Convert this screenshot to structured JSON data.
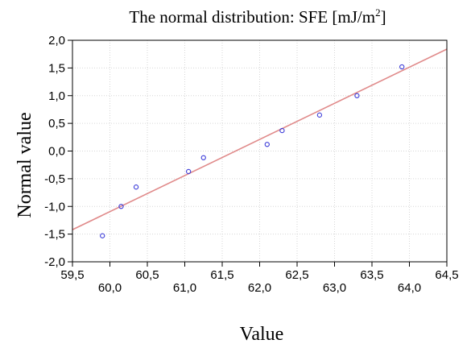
{
  "chart_data": {
    "type": "scatter",
    "title_main": "The normal distribution: SFE [mJ/m",
    "title_sup": "2",
    "title_end": "]",
    "xlabel": "Value",
    "ylabel": "Normal value",
    "xlim": [
      59.5,
      64.5
    ],
    "ylim": [
      -2.0,
      2.0
    ],
    "x_ticks_top_row": [
      "59,5",
      "60,5",
      "61,5",
      "62,5",
      "63,5",
      "64,5"
    ],
    "x_ticks_bottom_row": [
      "60,0",
      "61,0",
      "62,0",
      "63,0",
      "64,0"
    ],
    "y_ticks": [
      "2,0",
      "1,5",
      "1,0",
      "0,5",
      "0,0",
      "-0,5",
      "-1,0",
      "-1,5",
      "-2,0"
    ],
    "grid": true,
    "series": [
      {
        "x": [
          59.9,
          60.15,
          60.35,
          61.05,
          61.25,
          62.1,
          62.3,
          62.8,
          63.3,
          63.9
        ],
        "y": [
          -1.53,
          -1.0,
          -0.65,
          -0.37,
          -0.12,
          0.12,
          0.37,
          0.65,
          1.0,
          1.52
        ],
        "color": "#3a3ad8"
      }
    ],
    "fit_line": {
      "x": [
        59.5,
        64.5
      ],
      "y": [
        -1.42,
        1.84
      ],
      "color": "#e08a8a"
    }
  }
}
